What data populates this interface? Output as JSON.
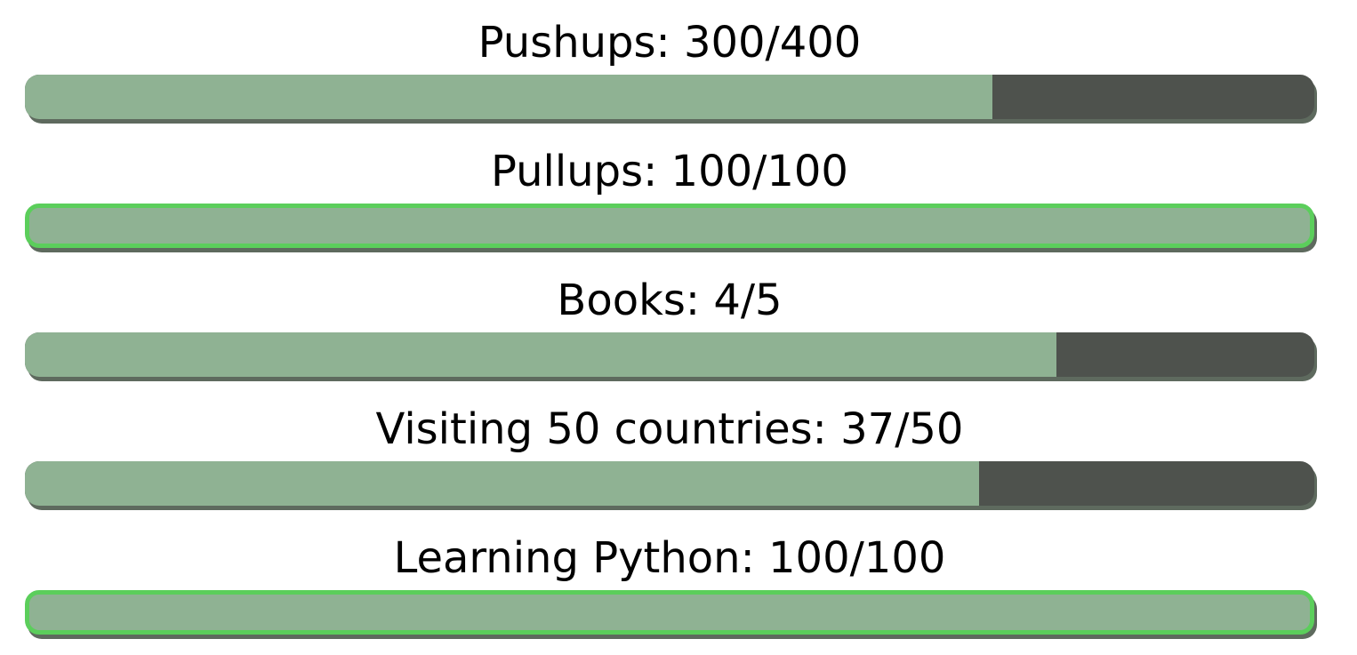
{
  "colors": {
    "fill": "#8fb293",
    "track": "#4e524d",
    "complete_border": "#5bce5b",
    "text": "#000000"
  },
  "goals": [
    {
      "label": "Pushups: 300/400",
      "current": 300,
      "target": 400
    },
    {
      "label": "Pullups: 100/100",
      "current": 100,
      "target": 100
    },
    {
      "label": "Books: 4/5",
      "current": 4,
      "target": 5
    },
    {
      "label": "Visiting 50 countries: 37/50",
      "current": 37,
      "target": 50
    },
    {
      "label": "Learning Python: 100/100",
      "current": 100,
      "target": 100
    }
  ]
}
